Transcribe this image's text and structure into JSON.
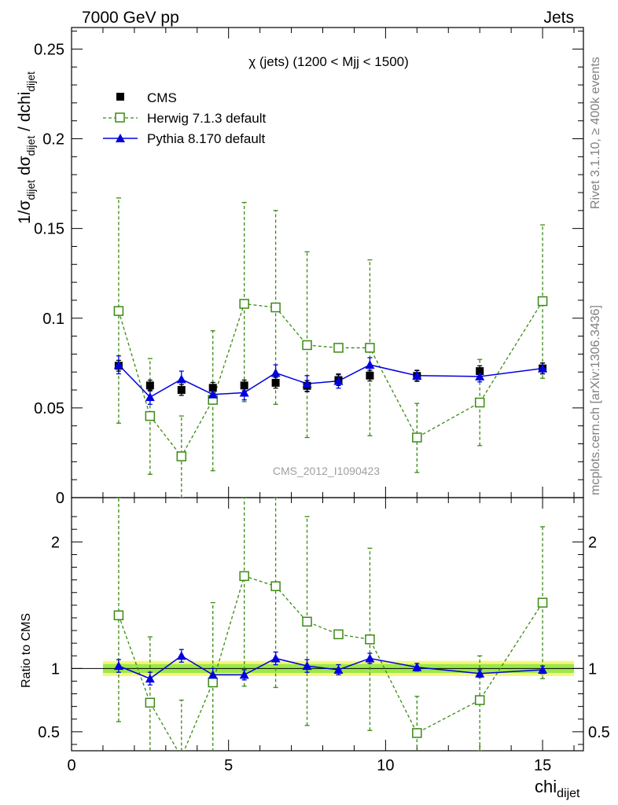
{
  "header": {
    "left": "7000 GeV pp",
    "right": "Jets"
  },
  "side_labels": {
    "rivet": "Rivet 3.1.10, ≥ 400k events",
    "mcplots": "mcplots.cern.ch [arXiv:1306.3436]"
  },
  "watermark": "CMS_2012_I1090423",
  "main_plot": {
    "title": "χ (jets) (1200 < Mjj < 1500)",
    "ylabel": "1/σdijet dσdijet / dchidijet",
    "ylim": [
      0,
      0.262
    ],
    "yticks": [
      "0.05",
      "0.1",
      "0.15",
      "0.2",
      "0.25"
    ],
    "ytick_values": [
      0.05,
      0.1,
      0.15,
      0.2,
      0.25
    ],
    "ytick_zero": "0"
  },
  "ratio_plot": {
    "ylabel": "Ratio to CMS",
    "ylim": [
      0.35,
      2.35
    ],
    "yticks": [
      "0.5",
      "1",
      "2"
    ],
    "ytick_values": [
      0.5,
      1,
      2
    ]
  },
  "xaxis": {
    "label": "chidijet",
    "xlim": [
      0,
      16.3
    ],
    "ticks": [
      "0",
      "5",
      "10",
      "15"
    ],
    "tick_values": [
      0,
      5,
      10,
      15
    ]
  },
  "legend": {
    "cms": "CMS",
    "herwig": "Herwig 7.1.3 default",
    "pythia": "Pythia 8.170 default"
  },
  "colors": {
    "data": "#000000",
    "herwig": "#3a8a12",
    "pythia": "#0000e0",
    "band_inner": "#9be84a",
    "band_outer": "#f4f77a"
  },
  "chart_data": {
    "type": "line",
    "x": [
      1.5,
      2.5,
      3.5,
      4.5,
      5.5,
      6.5,
      7.5,
      8.5,
      9.5,
      11,
      13,
      15
    ],
    "x_edges": [
      1,
      2,
      3,
      4,
      5,
      6,
      7,
      8,
      9,
      10,
      12,
      14,
      16
    ],
    "series": [
      {
        "name": "CMS",
        "y": [
          0.0735,
          0.0625,
          0.06,
          0.0612,
          0.0625,
          0.064,
          0.0623,
          0.0655,
          0.068,
          0.0678,
          0.0705,
          0.072
        ],
        "err": [
          0.003,
          0.003,
          0.003,
          0.003,
          0.003,
          0.003,
          0.003,
          0.003,
          0.003,
          0.003,
          0.003,
          0.003
        ]
      },
      {
        "name": "Herwig 7.1.3 default",
        "y": [
          0.104,
          0.0455,
          0.023,
          0.0545,
          0.108,
          0.106,
          0.085,
          0.0835,
          0.0835,
          0.0335,
          0.053,
          0.1095
        ],
        "lo": [
          0.0415,
          0.013,
          0.0,
          0.015,
          0.0535,
          0.052,
          0.0335,
          0.0,
          0.0345,
          0.014,
          0.029,
          0.0665
        ],
        "hi": [
          0.167,
          0.0775,
          0.0455,
          0.093,
          0.1645,
          0.16,
          0.137,
          0.0,
          0.1325,
          0.0525,
          0.077,
          0.152
        ]
      },
      {
        "name": "Pythia 8.170 default",
        "y": [
          0.074,
          0.056,
          0.066,
          0.0575,
          0.0585,
          0.0695,
          0.0635,
          0.065,
          0.074,
          0.068,
          0.0675,
          0.072
        ],
        "err": [
          0.005,
          0.004,
          0.0045,
          0.004,
          0.004,
          0.0045,
          0.0045,
          0.004,
          0.004,
          0.003,
          0.003,
          0.003
        ]
      }
    ],
    "ratio": {
      "herwig": {
        "y": [
          1.42,
          0.73,
          0.3,
          0.89,
          1.73,
          1.65,
          1.37,
          1.27,
          1.23,
          0.49,
          0.75,
          1.52
        ],
        "lo": [
          0.58,
          0.22,
          0.0,
          0.3,
          0.86,
          0.85,
          0.55,
          0.0,
          0.51,
          0.2,
          0.35,
          0.92
        ],
        "hi": [
          2.35,
          1.25,
          0.75,
          1.52,
          2.35,
          2.35,
          2.2,
          0.0,
          1.95,
          0.78,
          1.1,
          2.12
        ]
      },
      "pythia": {
        "y": [
          1.02,
          0.92,
          1.1,
          0.95,
          0.95,
          1.08,
          1.02,
          0.99,
          1.08,
          1.01,
          0.96,
          0.99
        ],
        "err": [
          0.05,
          0.05,
          0.05,
          0.05,
          0.04,
          0.05,
          0.05,
          0.04,
          0.04,
          0.03,
          0.03,
          0.03
        ]
      },
      "band_inner": 0.035,
      "band_outer": 0.06
    }
  }
}
